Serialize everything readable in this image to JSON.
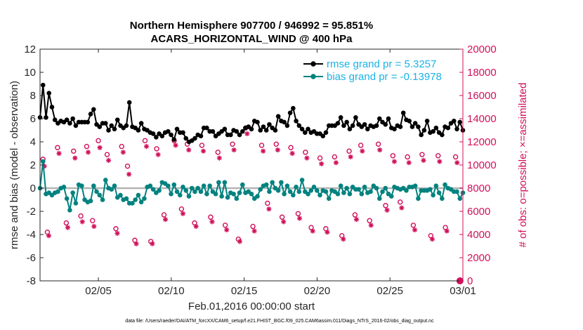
{
  "chart_data": {
    "type": "line",
    "title_line1": "Northern Hemisphere 907700 / 946992 = 95.851%",
    "title_line2": "ACARS_HORIZONTAL_WIND @ 400 hPa",
    "xlabel": "Feb.01,2016 00:00:00 start",
    "ylabel_left": "rmse and bias (model - observation)",
    "ylabel_right": "# of obs: o=possible; ×=assimilated",
    "footnote": "data file: /Users/raeder/DAI/ATM_forcXX/CAM6_setup/f.e21.FHIST_BGC.f09_025.CAM6assim.011/Diags_NTrS_2016-02/obs_diag_output.nc",
    "xlim": [
      1,
      30
    ],
    "ylim_left": [
      -8,
      12
    ],
    "ylim_right": [
      0,
      20000
    ],
    "x_ticks": [
      5,
      10,
      15,
      20,
      25,
      30
    ],
    "x_tick_labels": [
      "02/05",
      "02/10",
      "02/15",
      "02/20",
      "02/25",
      "03/01"
    ],
    "y_left_ticks": [
      -8,
      -6,
      -4,
      -2,
      0,
      2,
      4,
      6,
      8,
      10,
      12
    ],
    "y_right_ticks": [
      0,
      2000,
      4000,
      6000,
      8000,
      10000,
      12000,
      14000,
      16000,
      18000,
      20000
    ],
    "colors": {
      "rmse": "#000000",
      "bias": "#00827f",
      "obs": "#d0105a",
      "legend_text": "#19b2e6",
      "zero_line": "#b4b4b4"
    },
    "series": [
      {
        "name": "rmse grand pr = 5.3257",
        "values": [
          6.1,
          8.9,
          6.1,
          8.2,
          7.0,
          5.9,
          5.6,
          5.8,
          5.7,
          5.9,
          5.6,
          6.0,
          5.4,
          5.7,
          5.7,
          5.7,
          5.7,
          6.4,
          6.8,
          5.5,
          5.3,
          5.6,
          5.6,
          5.0,
          5.4,
          5.1,
          5.9,
          5.4,
          5.2,
          5.4,
          7.4,
          5.3,
          5.2,
          5.0,
          5.6,
          5.1,
          5.0,
          4.8,
          4.7,
          4.4,
          4.7,
          4.5,
          4.8,
          4.9,
          4.6,
          4.2,
          5.1,
          4.8,
          4.8,
          4.3,
          4.0,
          4.1,
          4.3,
          4.6,
          4.5,
          5.2,
          5.2,
          4.9,
          4.9,
          4.5,
          4.7,
          4.9,
          5.1,
          4.6,
          4.6,
          5.0,
          4.9,
          4.6,
          4.9,
          5.2,
          5.3,
          5.1,
          5.8,
          5.7,
          5.0,
          5.3,
          5.0,
          5.5,
          5.2,
          5.0,
          6.2,
          5.8,
          5.7,
          5.4,
          6.5,
          6.9,
          5.8,
          5.4,
          5.1,
          4.8,
          5.1,
          4.8,
          4.9,
          4.7,
          4.7,
          4.5,
          4.8,
          5.4,
          5.4,
          5.4,
          5.6,
          6.1,
          5.4,
          5.7,
          5.1,
          5.4,
          6.1,
          5.5,
          5.3,
          5.5,
          5.1,
          5.4,
          5.3,
          5.4,
          6.0,
          5.7,
          5.5,
          6.0,
          5.2,
          5.1,
          5.4,
          5.3,
          6.5,
          5.9,
          5.8,
          5.3,
          5.6,
          5.3,
          4.6,
          5.0,
          5.8,
          4.8,
          4.9,
          5.2,
          4.8,
          4.6,
          5.3,
          5.2,
          5.6,
          5.8,
          5.1,
          5.7,
          5.0
        ]
      },
      {
        "name": "bias grand pr = -0.13978",
        "values": [
          0.0,
          2.3,
          -0.5,
          -0.4,
          -0.6,
          -0.4,
          -0.3,
          0.0,
          0.1,
          -0.9,
          -1.9,
          -0.4,
          -1.3,
          0.3,
          0.2,
          -1.0,
          -1.2,
          -1.1,
          0.2,
          -0.3,
          -0.6,
          -1.0,
          0.7,
          0.0,
          -0.1,
          0.2,
          -0.8,
          -0.6,
          -1.0,
          -0.9,
          -1.3,
          -1.3,
          -1.0,
          -0.6,
          -1.2,
          -0.9,
          0.1,
          0.2,
          -0.1,
          -0.4,
          -0.2,
          0.5,
          0.4,
          0.2,
          -0.5,
          0.3,
          -0.3,
          -0.6,
          0.1,
          -0.2,
          -0.7,
          0.0,
          -0.3,
          0.0,
          -0.3,
          0.2,
          -0.5,
          0.2,
          -0.3,
          -0.5,
          0.5,
          -0.7,
          0.5,
          -0.8,
          -0.4,
          -0.5,
          -0.9,
          -0.4,
          0.3,
          -0.4,
          -0.3,
          -0.5,
          -0.9,
          -0.7,
          -0.1,
          0.2,
          0.3,
          -0.3,
          0.5,
          0.0,
          -0.2,
          0.5,
          -0.5,
          0.2,
          -0.3,
          -0.6,
          0.1,
          -0.3,
          0.7,
          -0.3,
          -0.5,
          -0.2,
          0.1,
          -0.2,
          -0.6,
          -0.2,
          -0.3,
          -0.9,
          -0.2,
          -0.3,
          -0.5,
          0.2,
          -0.4,
          0.0,
          -0.5,
          0.1,
          -0.1,
          -0.1,
          -0.5,
          0.1,
          -0.4,
          -0.3,
          0.2,
          0.0,
          -0.9,
          -0.3,
          0.0,
          -0.5,
          -0.7,
          0.1,
          0.0,
          -0.1,
          0.0,
          -0.2,
          0.1,
          0.1,
          0.2,
          -0.9,
          -0.2,
          -0.2,
          -0.2,
          -0.1,
          -0.6,
          0.2,
          -0.4,
          -0.9,
          0.3,
          0.0,
          -0.1,
          -0.3,
          -0.3,
          -0.9,
          -0.4
        ]
      }
    ],
    "obs_possible": [
      {
        "x": 1.2,
        "y": 10500
      },
      {
        "x": 1.5,
        "y": 4200
      },
      {
        "x": 2.2,
        "y": 11500
      },
      {
        "x": 2.8,
        "y": 5000
      },
      {
        "x": 3.3,
        "y": 11200
      },
      {
        "x": 3.8,
        "y": 5600
      },
      {
        "x": 4.2,
        "y": 11600
      },
      {
        "x": 4.6,
        "y": 5200
      },
      {
        "x": 5.0,
        "y": 12100
      },
      {
        "x": 5.6,
        "y": 10900
      },
      {
        "x": 6.2,
        "y": 4500
      },
      {
        "x": 6.6,
        "y": 11600
      },
      {
        "x": 7.0,
        "y": 9900
      },
      {
        "x": 7.5,
        "y": 3500
      },
      {
        "x": 8.2,
        "y": 12100
      },
      {
        "x": 8.6,
        "y": 3400
      },
      {
        "x": 9.0,
        "y": 11400
      },
      {
        "x": 9.5,
        "y": 5700
      },
      {
        "x": 10.2,
        "y": 12100
      },
      {
        "x": 10.7,
        "y": 6200
      },
      {
        "x": 11.1,
        "y": 11800
      },
      {
        "x": 11.6,
        "y": 5000
      },
      {
        "x": 12.1,
        "y": 11700
      },
      {
        "x": 12.7,
        "y": 5500
      },
      {
        "x": 13.2,
        "y": 11100
      },
      {
        "x": 13.7,
        "y": 4800
      },
      {
        "x": 14.2,
        "y": 11800
      },
      {
        "x": 14.6,
        "y": 3600
      },
      {
        "x": 15.1,
        "y": 13200
      },
      {
        "x": 15.6,
        "y": 4700
      },
      {
        "x": 16.2,
        "y": 11700
      },
      {
        "x": 16.6,
        "y": 6700
      },
      {
        "x": 17.2,
        "y": 11800
      },
      {
        "x": 17.6,
        "y": 5500
      },
      {
        "x": 18.2,
        "y": 11500
      },
      {
        "x": 18.7,
        "y": 5800
      },
      {
        "x": 19.2,
        "y": 11100
      },
      {
        "x": 19.6,
        "y": 4600
      },
      {
        "x": 20.2,
        "y": 10600
      },
      {
        "x": 20.6,
        "y": 4500
      },
      {
        "x": 21.2,
        "y": 10700
      },
      {
        "x": 21.7,
        "y": 3900
      },
      {
        "x": 22.2,
        "y": 11200
      },
      {
        "x": 22.6,
        "y": 5700
      },
      {
        "x": 23.0,
        "y": 11700
      },
      {
        "x": 23.6,
        "y": 5200
      },
      {
        "x": 24.2,
        "y": 11800
      },
      {
        "x": 24.7,
        "y": 6500
      },
      {
        "x": 25.2,
        "y": 10800
      },
      {
        "x": 25.7,
        "y": 6800
      },
      {
        "x": 26.2,
        "y": 10700
      },
      {
        "x": 26.6,
        "y": 4800
      },
      {
        "x": 27.2,
        "y": 10900
      },
      {
        "x": 27.8,
        "y": 3900
      },
      {
        "x": 28.3,
        "y": 10800
      },
      {
        "x": 28.8,
        "y": 4600
      },
      {
        "x": 29.5,
        "y": 10700
      }
    ],
    "obs_assimilated": [
      {
        "x": 1.3,
        "y": 9900
      },
      {
        "x": 1.6,
        "y": 3900
      },
      {
        "x": 2.3,
        "y": 11000
      },
      {
        "x": 2.9,
        "y": 4600
      },
      {
        "x": 3.4,
        "y": 10600
      },
      {
        "x": 3.9,
        "y": 5100
      },
      {
        "x": 4.3,
        "y": 11100
      },
      {
        "x": 4.7,
        "y": 4700
      },
      {
        "x": 5.1,
        "y": 11500
      },
      {
        "x": 5.7,
        "y": 10400
      },
      {
        "x": 6.3,
        "y": 4100
      },
      {
        "x": 6.7,
        "y": 11100
      },
      {
        "x": 7.1,
        "y": 9200
      },
      {
        "x": 7.6,
        "y": 3200
      },
      {
        "x": 8.3,
        "y": 11600
      },
      {
        "x": 8.7,
        "y": 3200
      },
      {
        "x": 9.1,
        "y": 10900
      },
      {
        "x": 9.6,
        "y": 5300
      },
      {
        "x": 10.3,
        "y": 11700
      },
      {
        "x": 10.8,
        "y": 5800
      },
      {
        "x": 11.2,
        "y": 11300
      },
      {
        "x": 11.7,
        "y": 4700
      },
      {
        "x": 12.2,
        "y": 11200
      },
      {
        "x": 12.8,
        "y": 5100
      },
      {
        "x": 13.3,
        "y": 10600
      },
      {
        "x": 13.8,
        "y": 4400
      },
      {
        "x": 14.3,
        "y": 11300
      },
      {
        "x": 14.7,
        "y": 3400
      },
      {
        "x": 15.2,
        "y": 12700
      },
      {
        "x": 15.7,
        "y": 4300
      },
      {
        "x": 16.3,
        "y": 11200
      },
      {
        "x": 16.7,
        "y": 6200
      },
      {
        "x": 17.3,
        "y": 11300
      },
      {
        "x": 17.7,
        "y": 5100
      },
      {
        "x": 18.3,
        "y": 11000
      },
      {
        "x": 18.8,
        "y": 5400
      },
      {
        "x": 19.3,
        "y": 10600
      },
      {
        "x": 19.7,
        "y": 4300
      },
      {
        "x": 20.3,
        "y": 10100
      },
      {
        "x": 20.7,
        "y": 4200
      },
      {
        "x": 21.3,
        "y": 10200
      },
      {
        "x": 21.8,
        "y": 3600
      },
      {
        "x": 22.3,
        "y": 10700
      },
      {
        "x": 22.7,
        "y": 5300
      },
      {
        "x": 23.1,
        "y": 11200
      },
      {
        "x": 23.7,
        "y": 4800
      },
      {
        "x": 24.3,
        "y": 11300
      },
      {
        "x": 24.8,
        "y": 6100
      },
      {
        "x": 25.3,
        "y": 10300
      },
      {
        "x": 25.8,
        "y": 6300
      },
      {
        "x": 26.3,
        "y": 10200
      },
      {
        "x": 26.7,
        "y": 4400
      },
      {
        "x": 27.3,
        "y": 10400
      },
      {
        "x": 27.9,
        "y": 3600
      },
      {
        "x": 28.4,
        "y": 10300
      },
      {
        "x": 28.9,
        "y": 4300
      },
      {
        "x": 29.6,
        "y": 10200
      }
    ],
    "obs_endpoint": {
      "x": 29.8,
      "y": 0
    }
  }
}
